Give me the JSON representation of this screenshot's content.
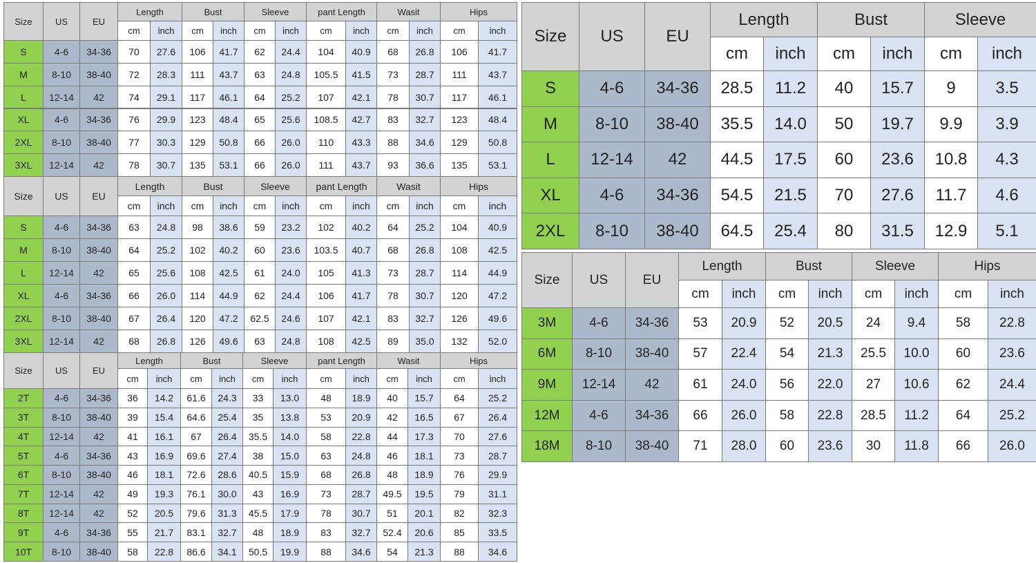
{
  "tables": [
    {
      "columns": [
        "Size",
        "US",
        "EU"
      ],
      "groups": [
        "Length",
        "Bust",
        "Sleeve",
        "pant Length",
        "Wasit",
        "Hips"
      ],
      "units": [
        "cm",
        "inch"
      ],
      "rows": [
        [
          "S",
          "4-6",
          "34-36",
          "70",
          "27.6",
          "106",
          "41.7",
          "62",
          "24.4",
          "104",
          "40.9",
          "68",
          "26.8",
          "106",
          "41.7"
        ],
        [
          "M",
          "8-10",
          "38-40",
          "72",
          "28.3",
          "111",
          "43.7",
          "63",
          "24.8",
          "105.5",
          "41.5",
          "73",
          "28.7",
          "111",
          "43.7"
        ],
        [
          "L",
          "12-14",
          "42",
          "74",
          "29.1",
          "117",
          "46.1",
          "64",
          "25.2",
          "107",
          "42.1",
          "78",
          "30.7",
          "117",
          "46.1"
        ],
        [
          "XL",
          "4-6",
          "34-36",
          "76",
          "29.9",
          "123",
          "48.4",
          "65",
          "25.6",
          "108.5",
          "42.7",
          "83",
          "32.7",
          "123",
          "48.4"
        ],
        [
          "2XL",
          "8-10",
          "38-40",
          "77",
          "30.3",
          "129",
          "50.8",
          "66",
          "26.0",
          "110",
          "43.3",
          "88",
          "34.6",
          "129",
          "50.8"
        ],
        [
          "3XL",
          "12-14",
          "42",
          "78",
          "30.7",
          "135",
          "53.1",
          "66",
          "26.0",
          "111",
          "43.7",
          "93",
          "36.6",
          "135",
          "53.1"
        ]
      ]
    },
    {
      "columns": [
        "Size",
        "US",
        "EU"
      ],
      "groups": [
        "Length",
        "Bust",
        "Sleeve",
        "pant Length",
        "Wasit",
        "Hips"
      ],
      "units": [
        "cm",
        "inch"
      ],
      "rows": [
        [
          "S",
          "4-6",
          "34-36",
          "63",
          "24.8",
          "98",
          "38.6",
          "59",
          "23.2",
          "102",
          "40.2",
          "64",
          "25.2",
          "104",
          "40.9"
        ],
        [
          "M",
          "8-10",
          "38-40",
          "64",
          "25.2",
          "102",
          "40.2",
          "60",
          "23.6",
          "103.5",
          "40.7",
          "68",
          "26.8",
          "108",
          "42.5"
        ],
        [
          "L",
          "12-14",
          "42",
          "65",
          "25.6",
          "108",
          "42.5",
          "61",
          "24.0",
          "105",
          "41.3",
          "73",
          "28.7",
          "114",
          "44.9"
        ],
        [
          "XL",
          "4-6",
          "34-36",
          "66",
          "26.0",
          "114",
          "44.9",
          "62",
          "24.4",
          "106",
          "41.7",
          "78",
          "30.7",
          "120",
          "47.2"
        ],
        [
          "2XL",
          "8-10",
          "38-40",
          "67",
          "26.4",
          "120",
          "47.2",
          "62.5",
          "24.6",
          "107",
          "42.1",
          "83",
          "32.7",
          "126",
          "49.6"
        ],
        [
          "3XL",
          "12-14",
          "42",
          "68",
          "26.8",
          "126",
          "49.6",
          "63",
          "24.8",
          "108",
          "42.5",
          "89",
          "35.0",
          "132",
          "52.0"
        ]
      ]
    },
    {
      "columns": [
        "Size",
        "US",
        "EU"
      ],
      "groups": [
        "Length",
        "Bust",
        "Sleeve",
        "pant Length",
        "Wasit",
        "Hips"
      ],
      "units": [
        "cm",
        "inch"
      ],
      "rows": [
        [
          "2T",
          "4-6",
          "34-36",
          "36",
          "14.2",
          "61.6",
          "24.3",
          "33",
          "13.0",
          "48",
          "18.9",
          "40",
          "15.7",
          "64",
          "25.2"
        ],
        [
          "3T",
          "8-10",
          "38-40",
          "39",
          "15.4",
          "64.6",
          "25.4",
          "35",
          "13.8",
          "53",
          "20.9",
          "42",
          "16.5",
          "67",
          "26.4"
        ],
        [
          "4T",
          "12-14",
          "42",
          "41",
          "16.1",
          "67",
          "26.4",
          "35.5",
          "14.0",
          "58",
          "22.8",
          "44",
          "17.3",
          "70",
          "27.6"
        ],
        [
          "5T",
          "4-6",
          "34-36",
          "43",
          "16.9",
          "69.6",
          "27.4",
          "38",
          "15.0",
          "63",
          "24.8",
          "46",
          "18.1",
          "73",
          "28.7"
        ],
        [
          "6T",
          "8-10",
          "38-40",
          "46",
          "18.1",
          "72.6",
          "28.6",
          "40.5",
          "15.9",
          "68",
          "26.8",
          "48",
          "18.9",
          "76",
          "29.9"
        ],
        [
          "7T",
          "12-14",
          "42",
          "49",
          "19.3",
          "76.1",
          "30.0",
          "43",
          "16.9",
          "73",
          "28.7",
          "49.5",
          "19.5",
          "79",
          "31.1"
        ],
        [
          "8T",
          "12-14",
          "42",
          "52",
          "20.5",
          "79.6",
          "31.3",
          "45.5",
          "17.9",
          "78",
          "30.7",
          "51",
          "20.1",
          "82",
          "32.3"
        ],
        [
          "9T",
          "4-6",
          "34-36",
          "55",
          "21.7",
          "83.1",
          "32.7",
          "48",
          "18.9",
          "83",
          "32.7",
          "52.4",
          "20.6",
          "85",
          "33.5"
        ],
        [
          "10T",
          "8-10",
          "38-40",
          "58",
          "22.8",
          "86.6",
          "34.1",
          "50.5",
          "19.9",
          "88",
          "34.6",
          "54",
          "21.3",
          "88",
          "34.6"
        ]
      ]
    },
    {
      "columns": [
        "Size",
        "US",
        "EU"
      ],
      "groups": [
        "Length",
        "Bust",
        "Sleeve"
      ],
      "units": [
        "cm",
        "inch"
      ],
      "rows": [
        [
          "S",
          "4-6",
          "34-36",
          "28.5",
          "11.2",
          "40",
          "15.7",
          "9",
          "3.5"
        ],
        [
          "M",
          "8-10",
          "38-40",
          "35.5",
          "14.0",
          "50",
          "19.7",
          "9.9",
          "3.9"
        ],
        [
          "L",
          "12-14",
          "42",
          "44.5",
          "17.5",
          "60",
          "23.6",
          "10.8",
          "4.3"
        ],
        [
          "XL",
          "4-6",
          "34-36",
          "54.5",
          "21.5",
          "70",
          "27.6",
          "11.7",
          "4.6"
        ],
        [
          "2XL",
          "8-10",
          "38-40",
          "64.5",
          "25.4",
          "80",
          "31.5",
          "12.9",
          "5.1"
        ]
      ]
    },
    {
      "columns": [
        "Size",
        "US",
        "EU"
      ],
      "groups": [
        "Length",
        "Bust",
        "Sleeve",
        "Hips"
      ],
      "units": [
        "cm",
        "inch"
      ],
      "rows": [
        [
          "3M",
          "4-6",
          "34-36",
          "53",
          "20.9",
          "52",
          "20.5",
          "24",
          "9.4",
          "58",
          "22.8"
        ],
        [
          "6M",
          "8-10",
          "38-40",
          "57",
          "22.4",
          "54",
          "21.3",
          "25.5",
          "10.0",
          "60",
          "23.6"
        ],
        [
          "9M",
          "12-14",
          "42",
          "61",
          "24.0",
          "56",
          "22.0",
          "27",
          "10.6",
          "62",
          "24.4"
        ],
        [
          "12M",
          "4-6",
          "34-36",
          "66",
          "26.0",
          "58",
          "22.8",
          "28.5",
          "11.2",
          "64",
          "25.2"
        ],
        [
          "18M",
          "8-10",
          "38-40",
          "71",
          "28.0",
          "60",
          "23.6",
          "30",
          "11.8",
          "66",
          "26.0"
        ]
      ]
    }
  ]
}
